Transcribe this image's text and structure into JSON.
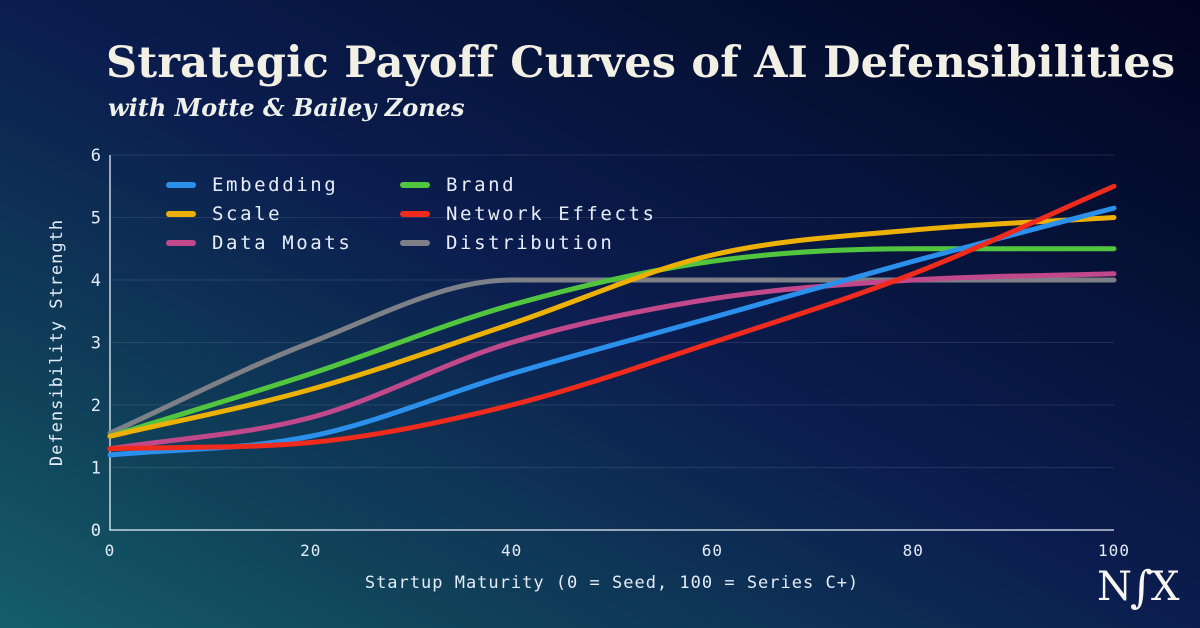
{
  "header": {
    "title": "Strategic Payoff Curves of AI Defensibilities",
    "subtitle": "with Motte & Bailey Zones"
  },
  "logo": {
    "n": "N",
    "f": "∫",
    "x": "X"
  },
  "chart_data": {
    "type": "line",
    "title": "Strategic Payoff Curves of AI Defensibilities",
    "subtitle": "with Motte & Bailey Zones",
    "xlabel": "Startup Maturity (0 = Seed, 100 = Series C+)",
    "ylabel": "Defensibility Strength",
    "xlim": [
      0,
      100
    ],
    "ylim": [
      0,
      6
    ],
    "xticks": [
      0,
      20,
      40,
      60,
      80,
      100
    ],
    "yticks": [
      0,
      1,
      2,
      3,
      4,
      5,
      6
    ],
    "grid": "horizontal",
    "legend_position": "top-left, two columns",
    "x": [
      0,
      20,
      40,
      60,
      80,
      100
    ],
    "series": [
      {
        "name": "Embedding",
        "color": "#2b90ec",
        "z": 4,
        "values": [
          1.2,
          1.5,
          2.5,
          3.4,
          4.3,
          5.15
        ]
      },
      {
        "name": "Scale",
        "color": "#edb005",
        "z": 2,
        "values": [
          1.5,
          2.25,
          3.3,
          4.4,
          4.8,
          5.0
        ]
      },
      {
        "name": "Data Moats",
        "color": "#c2488c",
        "z": 3,
        "values": [
          1.3,
          1.8,
          3.0,
          3.7,
          4.0,
          4.1
        ]
      },
      {
        "name": "Brand",
        "color": "#52c53e",
        "z": 1,
        "values": [
          1.5,
          2.5,
          3.6,
          4.3,
          4.5,
          4.5
        ]
      },
      {
        "name": "Network Effects",
        "color": "#ee2b1c",
        "z": 5,
        "values": [
          1.3,
          1.4,
          2.0,
          3.0,
          4.1,
          5.5
        ]
      },
      {
        "name": "Distribution",
        "color": "#7d8187",
        "z": 0,
        "values": [
          1.55,
          3.0,
          4.0,
          4.0,
          4.0,
          4.0
        ]
      }
    ],
    "axis_color": "#e8eef6",
    "grid_color": "rgba(255,255,255,0.10)",
    "tick_color": "#e3ecf7"
  }
}
